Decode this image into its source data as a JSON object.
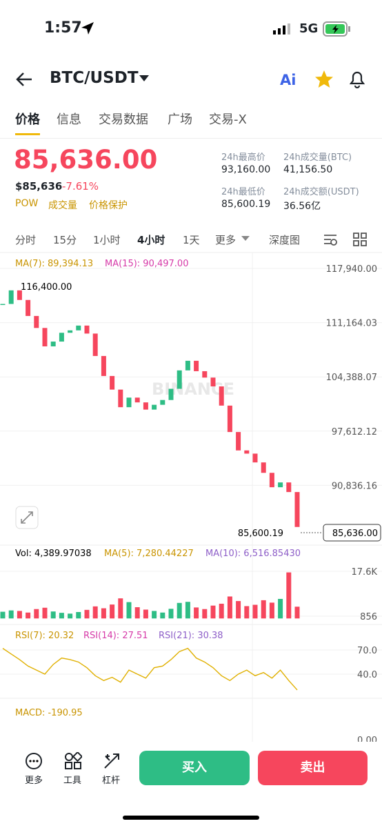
{
  "status": {
    "time": "1:57",
    "network": "5G"
  },
  "header": {
    "pair": "BTC/USDT",
    "ai": "Ai"
  },
  "tabs": [
    "价格",
    "信息",
    "交易数据",
    "广场",
    "交易-X"
  ],
  "price": {
    "last": "85,636.00",
    "usd": "$85,636",
    "change": "-7.61%",
    "tags": [
      "POW",
      "成交量",
      "价格保护"
    ],
    "stats": [
      [
        "24h最高价",
        "93,160.00"
      ],
      [
        "24h成交量(BTC)",
        "41,156.50"
      ],
      [
        "24h最低价",
        "85,600.19"
      ],
      [
        "24h成交额(USDT)",
        "36.56亿"
      ]
    ]
  },
  "intervals": [
    "分时",
    "15分",
    "1小时",
    "4小时",
    "1天",
    "更多",
    "深度图"
  ],
  "chart": {
    "ma7": "MA(7): 89,394.13",
    "ma15": "MA(15): 90,497.00",
    "high_label": "116,400.00",
    "low_label": "85,600.19",
    "current_label": "85,636.00",
    "watermark": "BINANCE",
    "ylim": [
      83370,
      119580
    ],
    "yticks": [
      {
        "value": 117940,
        "label": "117,940.00"
      },
      {
        "value": 111164.03,
        "label": "111,164.03"
      },
      {
        "value": 104388.07,
        "label": "104,388.07"
      },
      {
        "value": 97612.12,
        "label": "97,612.12"
      },
      {
        "value": 90836.16,
        "label": "90,836.16"
      }
    ],
    "closes": [
      113500,
      115200,
      114000,
      112000,
      110500,
      108200,
      108800,
      109900,
      110200,
      110800,
      109800,
      107000,
      104500,
      102800,
      100600,
      101800,
      101200,
      100300,
      100900,
      101500,
      102900,
      105200,
      106400,
      105100,
      104300,
      103200,
      100800,
      97500,
      95200,
      94800,
      93700,
      92400,
      90600,
      91200,
      90000,
      85636
    ]
  },
  "volume": {
    "vol": "Vol: 4,389.97038",
    "ma5": "MA(5): 7,280.44227",
    "ma10": "MA(10): 6,516.85430",
    "ylim": [
      0,
      20950
    ],
    "yticks": [
      {
        "value": 17600,
        "label": "17.6K"
      },
      856
    ],
    "values": [
      2500,
      3000,
      2800,
      2200,
      3500,
      4000,
      2600,
      2100,
      1800,
      2400,
      3200,
      4500,
      3800,
      5200,
      7500,
      6100,
      4200,
      3300,
      2800,
      2200,
      3600,
      5800,
      6200,
      4100,
      3500,
      4800,
      5500,
      8200,
      6500,
      4600,
      5100,
      6800,
      5900,
      7300,
      17200,
      4390
    ]
  },
  "rsi": {
    "rsi7": "RSI(7): 20.32",
    "rsi14": "RSI(14): 27.51",
    "rsi21": "RSI(21): 30.38",
    "ylim": [
      11.7,
      97.4
    ],
    "yticks": [
      {
        "value": 70,
        "label": "70.0"
      },
      {
        "value": 40,
        "label": "40.0"
      }
    ],
    "values": [
      72,
      65,
      58,
      50,
      45,
      40,
      52,
      60,
      58,
      55,
      48,
      38,
      32,
      36,
      30,
      45,
      40,
      35,
      48,
      50,
      58,
      68,
      72,
      60,
      55,
      48,
      38,
      32,
      40,
      45,
      38,
      42,
      35,
      45,
      32,
      20.32
    ]
  },
  "macd": {
    "label": "MACD: -190.95",
    "zero": "0.00"
  },
  "bottom": {
    "tools": [
      "更多",
      "工具",
      "杠杆"
    ],
    "buy": "买入",
    "sell": "卖出"
  }
}
